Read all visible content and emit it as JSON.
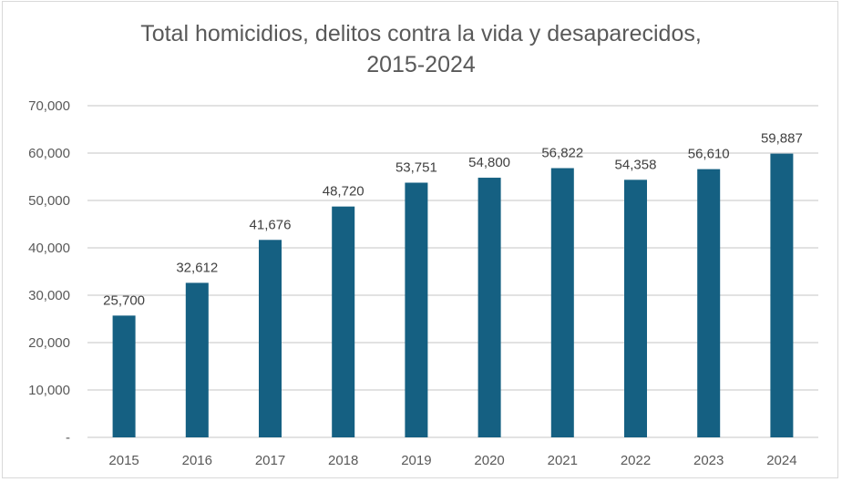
{
  "chart_data": {
    "type": "bar",
    "title_line1": "Total homicidios, delitos contra la vida y desaparecidos,",
    "title_line2": "2015-2024",
    "categories": [
      "2015",
      "2016",
      "2017",
      "2018",
      "2019",
      "2020",
      "2021",
      "2022",
      "2023",
      "2024"
    ],
    "values": [
      25700,
      32612,
      41676,
      48720,
      53751,
      54800,
      56822,
      54358,
      56610,
      59887
    ],
    "data_labels": [
      "25,700",
      "32,612",
      "41,676",
      "48,720",
      "53,751",
      "54,800",
      "56,822",
      "54,358",
      "56,610",
      "59,887"
    ],
    "y_ticks": [
      0,
      10000,
      20000,
      30000,
      40000,
      50000,
      60000,
      70000
    ],
    "y_tick_labels": [
      "-",
      "10,000",
      "20,000",
      "30,000",
      "40,000",
      "50,000",
      "60,000",
      "70,000"
    ],
    "ylim": [
      0,
      70000
    ],
    "xlabel": "",
    "ylabel": "",
    "grid": true,
    "legend": "none",
    "bar_color": "#156082"
  }
}
